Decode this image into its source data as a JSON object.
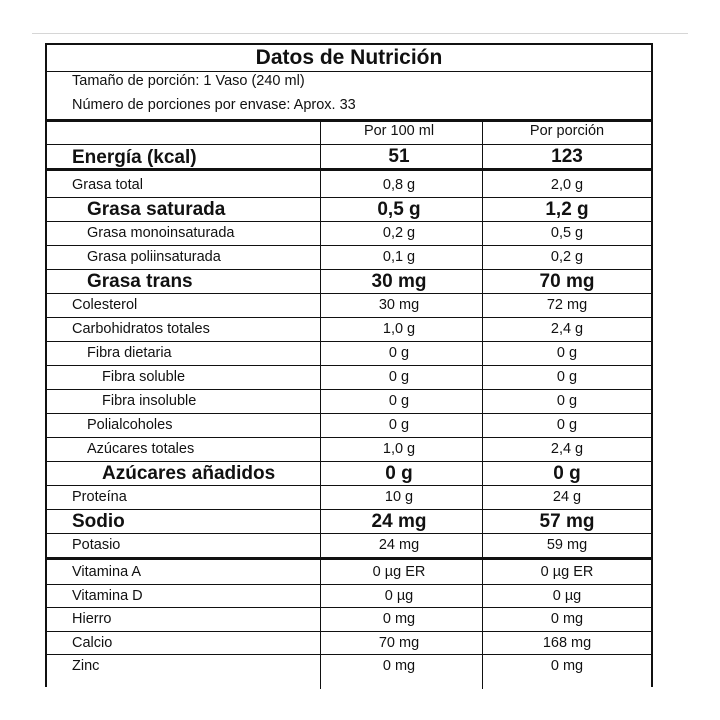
{
  "title": "Datos de Nutrición",
  "serving_size": "Tamaño de porción: 1 Vaso (240 ml)",
  "servings_per_container": "Número de porciones por envase: Aprox. 33",
  "columns": {
    "per_100": "Por 100 ml",
    "per_serving": "Por porción"
  },
  "energy": {
    "label": "Energía (kcal)",
    "per_100": "51",
    "per_serving": "123"
  },
  "rows": [
    {
      "label": "Grasa total",
      "per_100": "0,8 g",
      "per_serving": "2,0 g"
    },
    {
      "label": "Grasa saturada",
      "per_100": "0,5 g",
      "per_serving": "1,2 g"
    },
    {
      "label": "Grasa monoinsaturada",
      "per_100": "0,2 g",
      "per_serving": "0,5 g"
    },
    {
      "label": "Grasa poliinsaturada",
      "per_100": "0,1 g",
      "per_serving": "0,2 g"
    },
    {
      "label": "Grasa trans",
      "per_100": "30 mg",
      "per_serving": "70 mg"
    },
    {
      "label": "Colesterol",
      "per_100": "30 mg",
      "per_serving": "72 mg"
    },
    {
      "label": "Carbohidratos totales",
      "per_100": "1,0 g",
      "per_serving": "2,4 g"
    },
    {
      "label": "Fibra dietaria",
      "per_100": "0 g",
      "per_serving": "0 g"
    },
    {
      "label": "Fibra soluble",
      "per_100": "0 g",
      "per_serving": "0 g"
    },
    {
      "label": "Fibra insoluble",
      "per_100": "0 g",
      "per_serving": "0 g"
    },
    {
      "label": "Polialcoholes",
      "per_100": "0 g",
      "per_serving": "0 g"
    },
    {
      "label": "Azúcares totales",
      "per_100": "1,0 g",
      "per_serving": "2,4 g"
    },
    {
      "label": "Azúcares añadidos",
      "per_100": "0 g",
      "per_serving": "0 g"
    },
    {
      "label": "Proteína",
      "per_100": "10 g",
      "per_serving": "24 g"
    },
    {
      "label": "Sodio",
      "per_100": "24 mg",
      "per_serving": "57 mg"
    },
    {
      "label": "Potasio",
      "per_100": "24 mg",
      "per_serving": "59 mg"
    }
  ],
  "vitamins": [
    {
      "label": "Vitamina A",
      "per_100": "0 µg ER",
      "per_serving": "0 µg ER"
    },
    {
      "label": "Vitamina D",
      "per_100": "0 µg",
      "per_serving": "0 µg"
    },
    {
      "label": "Hierro",
      "per_100": "0 mg",
      "per_serving": "0 mg"
    },
    {
      "label": "Calcio",
      "per_100": "70 mg",
      "per_serving": "168 mg"
    },
    {
      "label": "Zinc",
      "per_100": "0 mg",
      "per_serving": "0 mg"
    }
  ]
}
